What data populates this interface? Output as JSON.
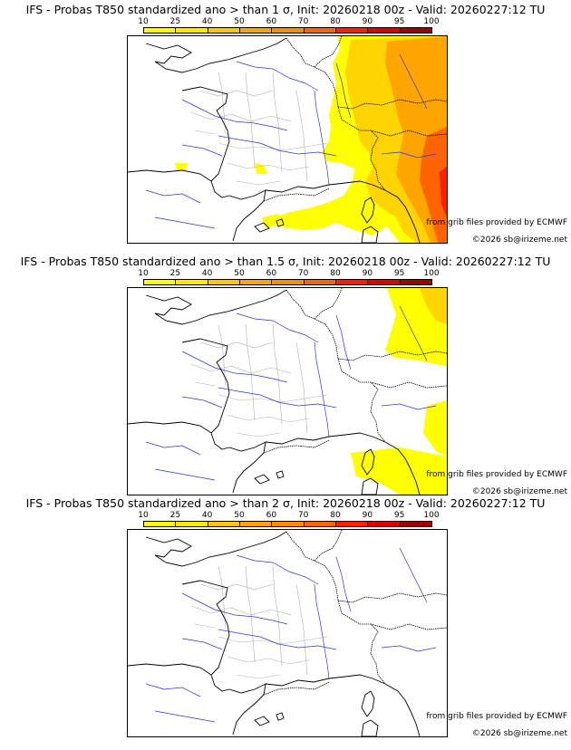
{
  "panels": [
    {
      "title": "IFS - Probas T850  standardized ano > than 1 σ, Init: 20260218 00z - Valid: 20260227:12 TU",
      "credit": "from grib files provided by ECMWF",
      "copyright": "©2026 sb@irizeme.net",
      "coverage": "high"
    },
    {
      "title": "IFS - Probas T850  standardized ano > than 1.5 σ, Init: 20260218 00z - Valid: 20260227:12 TU",
      "credit": "from grib files provided by ECMWF",
      "copyright": "©2026 sb@irizeme.net",
      "coverage": "medium"
    },
    {
      "title": "IFS - Probas T850  standardized ano > than 2 σ, Init: 20260218 00z - Valid: 20260227:12 TU",
      "credit": "from grib files provided by ECMWF",
      "copyright": "©2026 sb@irizeme.net",
      "coverage": "none"
    }
  ],
  "colorbar": {
    "labels": [
      "10",
      "25",
      "40",
      "50",
      "60",
      "70",
      "80",
      "90",
      "95",
      "100"
    ],
    "colors": [
      "#ffff00",
      "#ffea00",
      "#ffc800",
      "#ffa500",
      "#ff8c00",
      "#ff6400",
      "#ff1e00",
      "#dc0000",
      "#a00000",
      "#500000"
    ]
  }
}
